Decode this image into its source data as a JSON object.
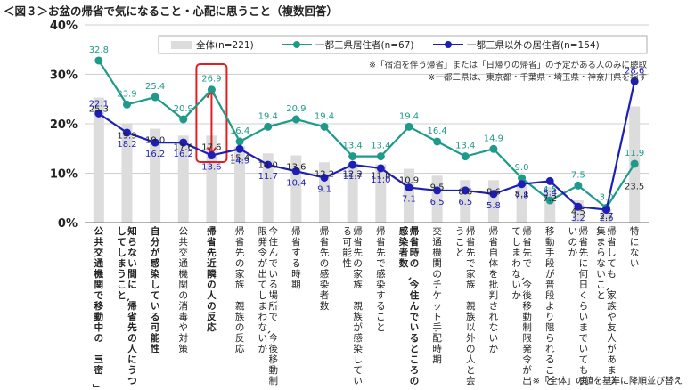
{
  "title": "＜図３＞お盆の帰省で気になること・心配に思うこと（複数回答）",
  "bottom_note": "※「全体」の値を基準に降順並び替え",
  "colors": {
    "bar": "#dcdcdc",
    "teal": "#1e9a8a",
    "blue": "#1d1db8",
    "highlight": "#e02020",
    "grid": "#bfbfbf"
  },
  "chart_data": {
    "type": "bar",
    "ylim": [
      0,
      40
    ],
    "yticks": [
      "0%",
      "10%",
      "20%",
      "30%",
      "40%"
    ],
    "categories": [
      "公共交通機関で移動中の「三密」",
      "知らない間に、帰省先の人にうつしてしまうこと",
      "自分が感染している可能性",
      "公共交通機関の消毒や対策",
      "帰省先近隣の人の反応",
      "帰省先の家族・親族の反応",
      "今住んでいる場所で、今後移動制限発令が出てしまわないか",
      "帰省する時期",
      "帰省先の感染者数",
      "帰省先の家族・親族が感染している可能性",
      "帰省先で感染すること",
      "帰省時の、今住んでいるところの感染者数",
      "交通機関のチケット手配時期",
      "帰省先で家族・親族以外の人と会うこと",
      "帰省自体を批判されないか",
      "帰省先で、今後移動制限発令が出てしまわないか",
      "移動手段が普段より限られること",
      "帰省先に何日くらいまでいても良いのか",
      "帰省しても、家族や友人があまり集まらないこと",
      "特にない"
    ],
    "highlight_index": 4,
    "series": [
      {
        "name": "全体(n=221)",
        "kind": "bar",
        "values": [
          25.3,
          19.9,
          19.0,
          17.6,
          17.6,
          15.4,
          14.0,
          13.6,
          12.2,
          12.2,
          11.8,
          10.9,
          9.5,
          8.6,
          8.6,
          8.1,
          7.2,
          4.5,
          2.7,
          23.5
        ]
      },
      {
        "name": "一都三県居住者(n=67)",
        "kind": "line",
        "values": [
          32.8,
          23.9,
          25.4,
          20.9,
          26.9,
          16.4,
          19.4,
          20.9,
          19.4,
          13.4,
          13.4,
          19.4,
          16.4,
          13.4,
          14.9,
          9.0,
          4.5,
          7.5,
          3.0,
          11.9
        ]
      },
      {
        "name": "一都三県以外の居住者(n=154)",
        "kind": "line",
        "values": [
          22.1,
          18.2,
          16.2,
          16.2,
          13.6,
          14.9,
          11.7,
          10.4,
          9.1,
          11.7,
          11.0,
          7.1,
          6.5,
          6.5,
          5.8,
          7.8,
          8.4,
          3.2,
          2.6,
          28.6
        ]
      }
    ],
    "notes": [
      "※「宿泊を伴う帰省」または「日帰りの帰省」の予定がある人のみに聴取",
      "※一都三県は、東京都・千葉県・埼玉県・神奈川県を指す"
    ]
  }
}
